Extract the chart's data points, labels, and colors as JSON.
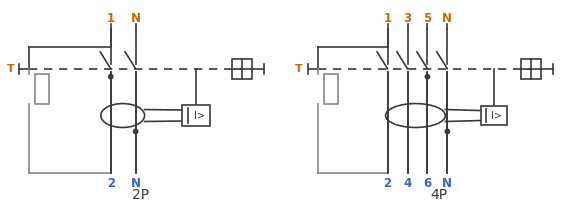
{
  "bg_color": "#ffffff",
  "line_color": "#3a3a3a",
  "orange_color": "#cc6600",
  "blue_color": "#3366cc",
  "gray_color": "#888888",
  "dark_color": "#3a3a3a",
  "label_2p": "2P",
  "label_4p": "4P",
  "top_labels_2p": [
    "1",
    "N"
  ],
  "bottom_labels_2p": [
    "2",
    "N"
  ],
  "top_labels_4p": [
    "1",
    "3",
    "5",
    "N"
  ],
  "bottom_labels_4p": [
    "2",
    "4",
    "6",
    "N"
  ],
  "T_label": "T"
}
